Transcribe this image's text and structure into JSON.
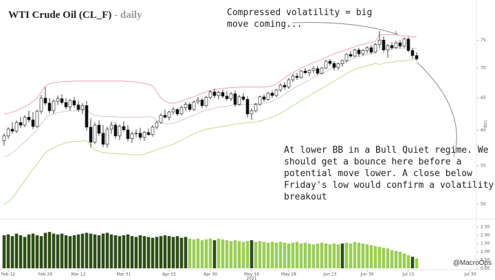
{
  "chart_data": [
    {
      "type": "candlestick",
      "title": "WTI Crude Oil (CL_F)",
      "subtitle": "- daily",
      "y_axis_label": "Log",
      "log_scale": true,
      "ylim": [
        48.5,
        77.5
      ],
      "yticks": [
        50,
        55,
        60,
        65,
        70,
        75
      ],
      "xlim": [
        -1,
        114
      ],
      "xticks": [
        {
          "value": 1,
          "label": "Feb 12"
        },
        {
          "value": 10,
          "label": "Feb 26"
        },
        {
          "value": 18,
          "label": "Mar 12"
        },
        {
          "value": 29,
          "label": "Mar 31"
        },
        {
          "value": 40,
          "label": "Apr 15"
        },
        {
          "value": 50,
          "label": "Apr 30"
        },
        {
          "value": 60,
          "label": "May 14"
        },
        {
          "value": 69,
          "label": "May 28"
        },
        {
          "value": 79,
          "label": "Jun 13"
        },
        {
          "value": 88,
          "label": "Jun 30"
        },
        {
          "value": 98,
          "label": "Jul 15"
        },
        {
          "value": 113,
          "label": "Jul 30"
        }
      ],
      "year": {
        "value": 60,
        "label": "2021"
      },
      "up_color": "#ffffff",
      "down_color": "#111111",
      "ohlc": [
        [
          58.5,
          59.6,
          57.8,
          59.2
        ],
        [
          59.2,
          60.5,
          58.8,
          60.2
        ],
        [
          60.2,
          61.2,
          59.5,
          59.9
        ],
        [
          59.9,
          61.5,
          59.6,
          61.2
        ],
        [
          61.2,
          62.0,
          60.4,
          60.8
        ],
        [
          60.8,
          62.3,
          60.5,
          62.0
        ],
        [
          62.0,
          63.0,
          61.2,
          61.6
        ],
        [
          61.6,
          62.8,
          60.2,
          60.6
        ],
        [
          60.6,
          63.2,
          60.4,
          62.9
        ],
        [
          62.9,
          65.5,
          62.5,
          65.0
        ],
        [
          65.0,
          66.8,
          63.8,
          64.2
        ],
        [
          64.2,
          65.0,
          62.6,
          63.0
        ],
        [
          63.0,
          64.8,
          62.5,
          64.5
        ],
        [
          64.5,
          65.4,
          63.9,
          64.9
        ],
        [
          64.9,
          65.6,
          64.0,
          64.3
        ],
        [
          64.3,
          65.0,
          63.2,
          63.6
        ],
        [
          63.6,
          64.9,
          63.0,
          64.6
        ],
        [
          64.6,
          65.2,
          63.5,
          63.9
        ],
        [
          63.9,
          64.6,
          62.8,
          63.2
        ],
        [
          63.2,
          64.2,
          62.5,
          63.8
        ],
        [
          63.8,
          64.5,
          60.0,
          60.5
        ],
        [
          60.5,
          61.8,
          57.5,
          58.3
        ],
        [
          58.3,
          61.2,
          58.0,
          60.8
        ],
        [
          60.8,
          61.5,
          59.2,
          59.6
        ],
        [
          59.6,
          60.8,
          57.6,
          58.0
        ],
        [
          58.0,
          60.6,
          57.5,
          60.2
        ],
        [
          60.2,
          61.3,
          59.5,
          60.8
        ],
        [
          60.8,
          61.2,
          58.8,
          59.2
        ],
        [
          59.2,
          60.9,
          58.6,
          60.6
        ],
        [
          60.6,
          61.4,
          59.8,
          60.1
        ],
        [
          60.1,
          60.8,
          58.4,
          58.8
        ],
        [
          58.8,
          59.8,
          58.2,
          59.5
        ],
        [
          59.5,
          60.2,
          59.0,
          59.6
        ],
        [
          59.6,
          60.4,
          58.6,
          59.0
        ],
        [
          59.0,
          59.9,
          58.5,
          59.7
        ],
        [
          59.7,
          60.3,
          59.2,
          59.4
        ],
        [
          59.4,
          60.8,
          59.1,
          60.5
        ],
        [
          60.5,
          61.5,
          60.2,
          61.2
        ],
        [
          61.2,
          62.6,
          61.0,
          62.3
        ],
        [
          62.3,
          63.2,
          61.8,
          62.0
        ],
        [
          62.0,
          63.0,
          61.5,
          62.8
        ],
        [
          62.8,
          63.6,
          62.4,
          63.2
        ],
        [
          63.2,
          63.4,
          62.2,
          62.5
        ],
        [
          62.5,
          63.8,
          62.3,
          63.5
        ],
        [
          63.5,
          64.4,
          63.0,
          64.0
        ],
        [
          64.0,
          64.3,
          62.9,
          63.2
        ],
        [
          63.2,
          64.6,
          63.0,
          64.4
        ],
        [
          64.4,
          65.2,
          64.0,
          64.7
        ],
        [
          64.7,
          65.0,
          63.4,
          63.8
        ],
        [
          63.8,
          65.4,
          63.5,
          65.1
        ],
        [
          65.1,
          66.3,
          64.8,
          66.0
        ],
        [
          66.0,
          66.5,
          65.0,
          65.4
        ],
        [
          65.4,
          66.2,
          64.8,
          65.9
        ],
        [
          65.9,
          66.4,
          65.0,
          65.3
        ],
        [
          65.3,
          66.1,
          64.6,
          64.9
        ],
        [
          64.9,
          66.0,
          64.5,
          65.7
        ],
        [
          65.7,
          66.2,
          63.6,
          64.0
        ],
        [
          64.0,
          65.5,
          63.8,
          65.2
        ],
        [
          65.2,
          65.8,
          64.5,
          64.8
        ],
        [
          64.8,
          65.3,
          62.0,
          62.5
        ],
        [
          62.5,
          63.4,
          61.6,
          63.0
        ],
        [
          63.0,
          64.2,
          62.7,
          64.0
        ],
        [
          64.0,
          65.4,
          63.8,
          65.2
        ],
        [
          65.2,
          65.6,
          64.4,
          64.8
        ],
        [
          64.8,
          66.0,
          64.6,
          65.8
        ],
        [
          65.8,
          66.2,
          65.0,
          65.4
        ],
        [
          65.4,
          66.5,
          65.1,
          66.3
        ],
        [
          66.3,
          67.4,
          66.0,
          67.1
        ],
        [
          67.1,
          67.6,
          66.4,
          66.8
        ],
        [
          66.8,
          68.3,
          66.5,
          68.0
        ],
        [
          68.0,
          69.0,
          67.6,
          68.6
        ],
        [
          68.6,
          69.2,
          68.0,
          68.4
        ],
        [
          68.4,
          69.7,
          68.2,
          69.5
        ],
        [
          69.5,
          70.0,
          68.9,
          69.2
        ],
        [
          69.2,
          69.8,
          68.6,
          69.6
        ],
        [
          69.6,
          70.3,
          69.1,
          69.9
        ],
        [
          69.9,
          70.4,
          68.8,
          69.1
        ],
        [
          69.1,
          70.2,
          68.9,
          70.0
        ],
        [
          70.0,
          71.4,
          69.8,
          71.2
        ],
        [
          71.2,
          71.6,
          70.4,
          70.8
        ],
        [
          70.8,
          71.2,
          69.6,
          70.1
        ],
        [
          70.1,
          71.0,
          69.7,
          70.8
        ],
        [
          70.8,
          71.5,
          70.2,
          71.3
        ],
        [
          71.3,
          72.6,
          71.0,
          72.4
        ],
        [
          72.4,
          73.0,
          71.8,
          72.1
        ],
        [
          72.1,
          73.4,
          71.9,
          73.2
        ],
        [
          73.2,
          73.6,
          72.0,
          72.5
        ],
        [
          72.5,
          73.4,
          72.2,
          73.1
        ],
        [
          73.1,
          73.9,
          72.6,
          73.6
        ],
        [
          73.6,
          74.1,
          72.4,
          72.8
        ],
        [
          72.8,
          74.5,
          72.6,
          74.2
        ],
        [
          74.2,
          76.7,
          73.5,
          75.0
        ],
        [
          75.0,
          75.7,
          72.8,
          73.2
        ],
        [
          73.2,
          74.3,
          71.8,
          74.0
        ],
        [
          74.0,
          74.6,
          73.2,
          73.6
        ],
        [
          73.6,
          74.8,
          73.4,
          74.5
        ],
        [
          74.5,
          75.0,
          73.5,
          73.9
        ],
        [
          73.9,
          75.5,
          73.6,
          75.2
        ],
        [
          75.2,
          75.6,
          72.8,
          73.1
        ],
        [
          73.1,
          73.5,
          71.6,
          72.2
        ],
        [
          72.2,
          72.8,
          71.3,
          71.6
        ]
      ],
      "upper_band": {
        "color": "#e6a3b5",
        "values": [
          62.5,
          62.6,
          62.8,
          63,
          63.3,
          63.6,
          64,
          64.5,
          65,
          66,
          67,
          67.3,
          67.5,
          67.6,
          67.7,
          67.7,
          67.7,
          67.8,
          67.8,
          67.8,
          67.8,
          67.8,
          67.8,
          67.8,
          67.8,
          67.8,
          67.8,
          67.8,
          67.8,
          67.8,
          67.7,
          67.7,
          67.6,
          67.5,
          67.4,
          67.2,
          67,
          66,
          65,
          64.5,
          64.2,
          64.2,
          64.3,
          64.5,
          64.8,
          65,
          65.2,
          65.5,
          65.8,
          66,
          66.2,
          66.4,
          66.5,
          66.6,
          66.6,
          66.7,
          66.7,
          66.8,
          66.8,
          66.8,
          66.8,
          66.8,
          66.8,
          66.8,
          66.9,
          67,
          67.3,
          67.8,
          68.3,
          68.8,
          69.2,
          69.6,
          70,
          70.3,
          70.6,
          71,
          71.2,
          71.5,
          71.8,
          72.2,
          72.5,
          72.8,
          73,
          73.2,
          73.5,
          73.8,
          74,
          74.2,
          74.4,
          74.6,
          74.8,
          76,
          76,
          76,
          76,
          76,
          75.8,
          75.8,
          75.8,
          75.6,
          75.6
        ]
      },
      "middle_band": {
        "color": "#d9c4cc",
        "values": [
          56.2,
          56.4,
          56.8,
          57.2,
          57.8,
          58.3,
          58.9,
          59.5,
          60.1,
          61,
          61.9,
          62.3,
          62.5,
          62.7,
          62.8,
          62.9,
          63,
          63,
          63.1,
          63.1,
          63.1,
          62.6,
          62.3,
          62.2,
          62.1,
          62.1,
          62.1,
          62.1,
          62,
          62,
          62,
          62,
          62,
          62,
          62,
          62.1,
          62,
          61.6,
          61.2,
          61,
          61,
          61.1,
          61.3,
          61.5,
          61.8,
          62.1,
          62.3,
          62.6,
          62.9,
          63.1,
          63.2,
          63.4,
          63.6,
          63.6,
          63.7,
          63.8,
          63.9,
          63.9,
          64,
          64,
          64,
          64.1,
          64.1,
          64.2,
          64.3,
          64.5,
          64.8,
          65.2,
          65.6,
          66.1,
          66.5,
          66.9,
          67.3,
          67.6,
          68,
          68.4,
          68.7,
          69,
          69.4,
          69.8,
          70.1,
          70.5,
          70.8,
          71.1,
          71.4,
          71.8,
          72,
          72.2,
          72.4,
          72.6,
          72.8,
          73.3,
          73.4,
          73.5,
          73.5,
          73.6,
          73.5,
          73.5,
          73.6,
          73.5,
          73.5
        ]
      },
      "lower_band": {
        "color": "#bcd98f",
        "values": [
          50,
          50.3,
          50.8,
          51.5,
          52.3,
          53,
          53.8,
          54.5,
          55.2,
          56,
          56.8,
          57.2,
          57.5,
          57.8,
          58,
          58.2,
          58.3,
          58.4,
          58.4,
          58.5,
          58.5,
          57.8,
          57.2,
          57,
          56.8,
          56.8,
          56.7,
          56.7,
          56.6,
          56.6,
          56.6,
          56.5,
          56.5,
          56.5,
          56.6,
          56.8,
          57,
          57.2,
          57.4,
          57.6,
          57.8,
          58,
          58.3,
          58.6,
          58.9,
          59.2,
          59.5,
          59.8,
          60,
          60.2,
          60.3,
          60.4,
          60.5,
          60.6,
          60.7,
          60.8,
          61,
          61,
          61.1,
          61.2,
          61.2,
          61.3,
          61.4,
          61.6,
          61.8,
          62,
          62.3,
          62.6,
          63,
          63.4,
          63.8,
          64.2,
          64.6,
          65,
          65.4,
          65.8,
          66.2,
          66.6,
          67,
          67.4,
          67.8,
          68.2,
          68.6,
          69,
          69.4,
          69.8,
          70,
          70.2,
          70.4,
          70.6,
          70.8,
          70.6,
          70.8,
          71,
          71,
          71.2,
          71.2,
          71.3,
          71.4,
          71.4,
          71.5
        ]
      },
      "annotations": [
        {
          "lines": [
            "Compressed volatility = big",
            "move coming..."
          ]
        },
        {
          "lines": [
            "At lower BB in a Bull Quiet regime. We",
            "should get a bounce here before a",
            "potential move lower. A close below",
            "Friday's low would confirm a volatility",
            "breakout"
          ]
        }
      ],
      "source": "@MacroOps"
    },
    {
      "type": "bar",
      "ylim": [
        0,
        2.5
      ],
      "yticks": [
        {
          "value": 0,
          "label": "0.00"
        },
        {
          "value": 0.5,
          "label": "0.50"
        },
        {
          "value": 1,
          "label": "1.00"
        },
        {
          "value": 1.5,
          "label": "1.50"
        },
        {
          "value": 2,
          "label": "2.00"
        },
        {
          "value": 2.5,
          "label": "2.50"
        }
      ],
      "values": [
        2.0,
        2.05,
        1.95,
        2.1,
        2.0,
        1.9,
        2.05,
        2.1,
        2.0,
        1.95,
        2.15,
        2.2,
        2.1,
        2.05,
        2.1,
        2.0,
        1.95,
        2.0,
        2.05,
        2.1,
        2.15,
        2.1,
        2.05,
        2.0,
        2.1,
        2.15,
        2.05,
        2.0,
        1.95,
        2.0,
        2.05,
        1.95,
        1.9,
        2.0,
        1.95,
        1.9,
        1.85,
        1.9,
        1.95,
        2.0,
        1.95,
        1.9,
        1.95,
        1.85,
        1.9,
        1.8,
        1.75,
        1.8,
        1.7,
        1.75,
        1.8,
        1.7,
        1.8,
        1.75,
        1.7,
        1.65,
        1.7,
        1.65,
        1.6,
        1.65,
        1.7,
        1.6,
        1.65,
        1.6,
        1.55,
        1.6,
        1.55,
        1.6,
        1.55,
        1.5,
        1.55,
        1.6,
        1.5,
        1.55,
        1.5,
        1.45,
        1.5,
        1.55,
        1.5,
        1.45,
        1.5,
        1.45,
        1.5,
        1.55,
        1.5,
        1.6,
        1.55,
        1.5,
        1.45,
        1.4,
        1.35,
        1.3,
        1.25,
        1.2,
        1.1,
        1.05,
        1.0,
        0.9,
        0.8,
        0.7,
        0.6
      ],
      "colors": [
        "#2f4d17",
        "#2f4d17",
        "#2f4d17",
        "#2f4d17",
        "#2f4d17",
        "#2f4d17",
        "#2f4d17",
        "#2f4d17",
        "#2f4d17",
        "#2f4d17",
        "#2f4d17",
        "#2f4d17",
        "#2f4d17",
        "#2f4d17",
        "#2f4d17",
        "#2f4d17",
        "#2f4d17",
        "#2f4d17",
        "#2f4d17",
        "#2f4d17",
        "#2f4d17",
        "#2f4d17",
        "#2f4d17",
        "#2f4d17",
        "#2f4d17",
        "#2f4d17",
        "#2f4d17",
        "#2f4d17",
        "#2f4d17",
        "#2f4d17",
        "#2f4d17",
        "#2f4d17",
        "#2f4d17",
        "#2f4d17",
        "#2f4d17",
        "#2f4d17",
        "#2f4d17",
        "#2f4d17",
        "#2f4d17",
        "#2f4d17",
        "#2f4d17",
        "#2f4d17",
        "#2f4d17",
        "#2f4d17",
        "#2f4d17",
        "#9bcd58",
        "#9bcd58",
        "#9bcd58",
        "#9bcd58",
        "#9bcd58",
        "#9bcd58",
        "#2f4d17",
        "#9bcd58",
        "#9bcd58",
        "#9bcd58",
        "#9bcd58",
        "#9bcd58",
        "#9bcd58",
        "#9bcd58",
        "#9bcd58",
        "#2f4d17",
        "#9bcd58",
        "#9bcd58",
        "#9bcd58",
        "#9bcd58",
        "#9bcd58",
        "#9bcd58",
        "#9bcd58",
        "#9bcd58",
        "#9bcd58",
        "#9bcd58",
        "#9bcd58",
        "#9bcd58",
        "#9bcd58",
        "#9bcd58",
        "#9bcd58",
        "#9bcd58",
        "#9bcd58",
        "#9bcd58",
        "#9bcd58",
        "#9bcd58",
        "#9bcd58",
        "#2f4d17",
        "#9bcd58",
        "#9bcd58",
        "#9bcd58",
        "#9bcd58",
        "#9bcd58",
        "#9bcd58",
        "#9bcd58",
        "#9bcd58",
        "#9bcd58",
        "#9bcd58",
        "#9bcd58",
        "#9bcd58",
        "#9bcd58",
        "#9bcd58",
        "#9bcd58",
        "#9bcd58",
        "#2f4d17",
        "#9bcd58"
      ]
    }
  ]
}
